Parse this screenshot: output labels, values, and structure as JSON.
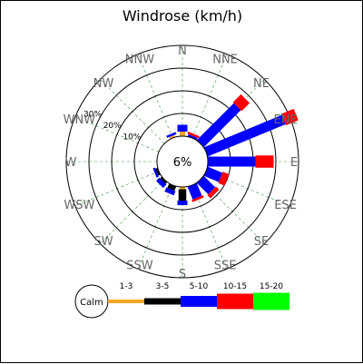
{
  "chart_data": {
    "type": "windrose",
    "title": "Windrose (km/h)",
    "calm_label": "Calm",
    "calm_percent_label": "6%",
    "rings": [
      {
        "value": 10,
        "label": "10%"
      },
      {
        "value": 20,
        "label": "20%"
      },
      {
        "value": 30,
        "label": "30%"
      },
      {
        "value": 40,
        "label": ""
      }
    ],
    "directions": [
      "N",
      "NNE",
      "NE",
      "ENE",
      "E",
      "ESE",
      "SE",
      "SSE",
      "S",
      "SSW",
      "SW",
      "WSW",
      "W",
      "WNW",
      "NW",
      "NNW"
    ],
    "bins": [
      {
        "label": "1-3",
        "color": "#f5a623"
      },
      {
        "label": "3-5",
        "color": "#000000"
      },
      {
        "label": "5-10",
        "color": "#0000ff"
      },
      {
        "label": "10-15",
        "color": "#ff0000"
      },
      {
        "label": "15-20",
        "color": "#00ff00"
      }
    ],
    "values": [
      [
        2,
        0,
        3,
        0,
        0
      ],
      [
        0,
        0,
        1,
        1,
        0
      ],
      [
        0,
        0,
        23,
        5,
        0
      ],
      [
        0,
        0,
        37,
        6,
        0
      ],
      [
        0,
        0,
        21,
        8,
        0
      ],
      [
        0,
        0,
        7,
        3,
        0
      ],
      [
        0,
        0,
        7,
        2,
        0
      ],
      [
        0,
        0,
        6,
        1,
        0
      ],
      [
        1,
        5,
        2,
        0,
        0
      ],
      [
        0,
        2,
        2,
        0,
        0
      ],
      [
        0,
        1,
        2,
        0,
        0
      ],
      [
        0,
        1,
        1,
        0,
        0
      ],
      [
        0,
        0,
        0,
        0,
        0
      ],
      [
        0,
        0,
        0,
        0,
        0
      ],
      [
        0,
        0,
        0,
        0,
        0
      ],
      [
        1,
        0,
        1,
        0,
        0
      ]
    ]
  }
}
